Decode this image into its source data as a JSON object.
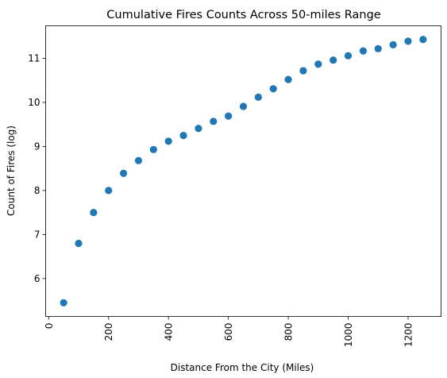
{
  "chart_data": {
    "type": "scatter",
    "title": "Cumulative Fires Counts Across 50-miles Range",
    "xlabel": "Distance From the City (Miles)",
    "ylabel": "Count of Fires (log)",
    "xlim": [
      -10,
      1310
    ],
    "ylim": [
      5.14,
      11.74
    ],
    "x_ticks": [
      0,
      200,
      400,
      600,
      800,
      1000,
      1200
    ],
    "y_ticks": [
      6,
      7,
      8,
      9,
      10,
      11
    ],
    "x_tick_rotation": "vertical",
    "grid": false,
    "legend": "none",
    "marker_color": "#1f77b4",
    "series": [
      {
        "x": [
          50,
          100,
          150,
          200,
          250,
          300,
          350,
          400,
          450,
          500,
          550,
          600,
          650,
          700,
          750,
          800,
          850,
          900,
          950,
          1000,
          1050,
          1100,
          1150,
          1200,
          1250
        ],
        "y": [
          5.45,
          6.8,
          7.5,
          8.0,
          8.39,
          8.68,
          8.93,
          9.12,
          9.25,
          9.41,
          9.57,
          9.69,
          9.91,
          10.12,
          10.31,
          10.52,
          10.72,
          10.87,
          10.96,
          11.06,
          11.17,
          11.22,
          11.31,
          11.39,
          11.43
        ]
      }
    ]
  }
}
